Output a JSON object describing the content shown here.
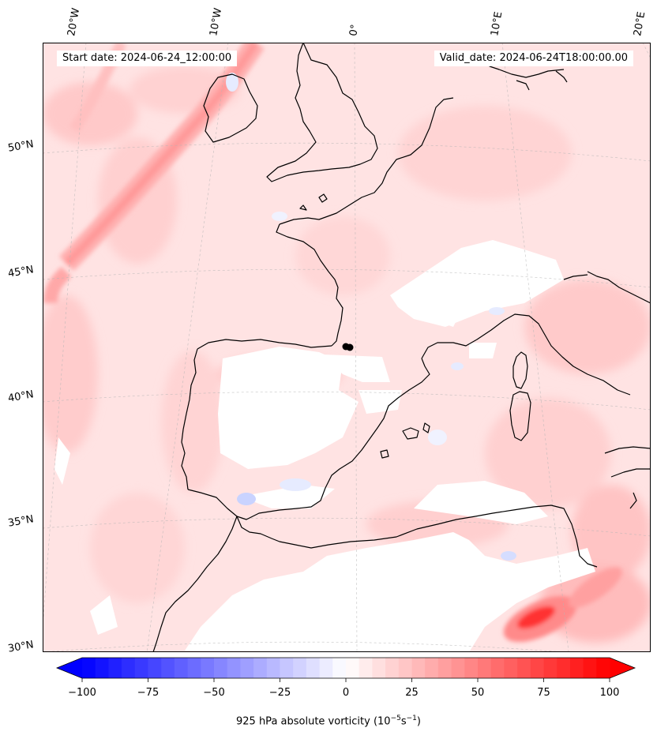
{
  "map": {
    "start_date_text": "Start date: 2024-06-24_12:00:00",
    "valid_date_text": "Valid_date: 2024-06-24T18:00:00.00",
    "lon_labels": [
      "20°W",
      "10°W",
      "0°",
      "10°E",
      "20°E"
    ],
    "lat_labels": [
      "50°N",
      "45°N",
      "40°N",
      "35°N",
      "30°N"
    ],
    "field": "925 hPa absolute vorticity",
    "colorbar": {
      "min": -100,
      "max": 100,
      "ticks": [
        "−100",
        "−75",
        "−50",
        "−25",
        "0",
        "25",
        "50",
        "75",
        "100"
      ],
      "label": "925 hPa absolute vorticity (10",
      "label_exp1": "−5",
      "label_mid": "s",
      "label_exp2": "−1",
      "label_end": ")",
      "extend": "both",
      "colormap": "bwr"
    },
    "colors": {
      "negative": "#0000ff",
      "positive": "#ff0000",
      "coastline": "#000000",
      "neutral": "#ffffff"
    }
  }
}
